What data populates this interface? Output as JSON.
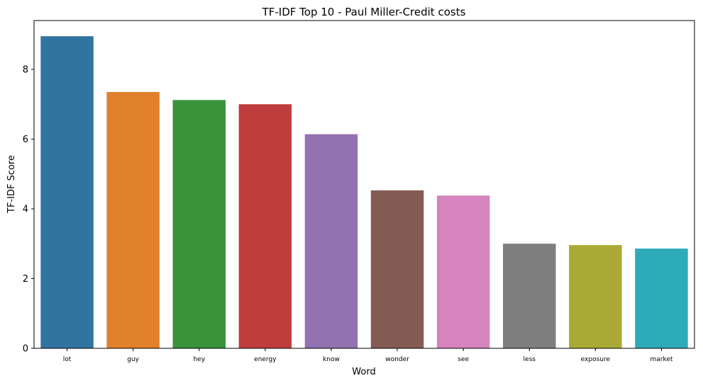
{
  "chart_data": {
    "type": "bar",
    "title": "TF-IDF Top 10 - Paul Miller-Credit costs",
    "xlabel": "Word",
    "ylabel": "TF-IDF Score",
    "categories": [
      "lot",
      "guy",
      "hey",
      "energy",
      "know",
      "wonder",
      "see",
      "less",
      "exposure",
      "market"
    ],
    "values": [
      8.95,
      7.35,
      7.12,
      7.0,
      6.14,
      4.53,
      4.38,
      3.0,
      2.96,
      2.86
    ],
    "colors": [
      "#3274a1",
      "#e1812c",
      "#3a923a",
      "#c03d3e",
      "#9372b2",
      "#845b53",
      "#d684bd",
      "#7f7f7f",
      "#a9aa35",
      "#2eabb8"
    ],
    "ylim": [
      0,
      9.4
    ],
    "yticks": [
      0,
      2,
      4,
      6,
      8
    ],
    "grid": false,
    "legend": "none"
  }
}
